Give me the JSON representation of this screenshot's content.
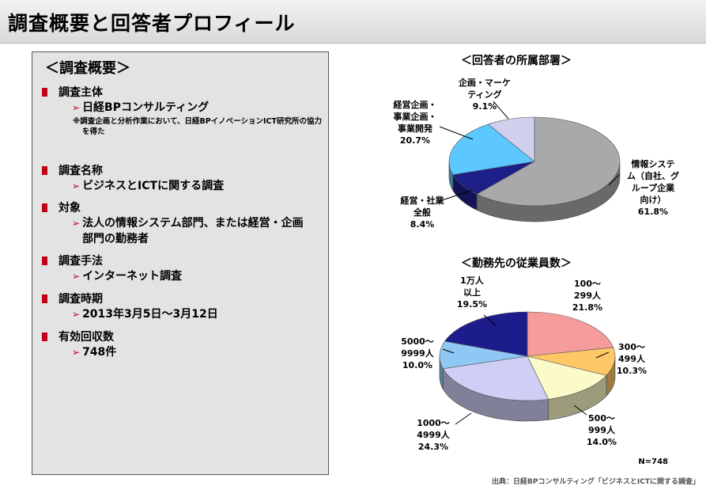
{
  "page": {
    "title": "調査概要と回答者プロフィール"
  },
  "summary": {
    "heading": "＜調査概要＞",
    "sections": [
      {
        "label": "調査主体",
        "items": [
          "日経BPコンサルティング"
        ],
        "note": "※調査企画と分析作業において、日経BPイノベーションICT研究所の協力を得た"
      },
      {
        "label": "調査名称",
        "items": [
          "ビジネスとICTに関する調査"
        ]
      },
      {
        "label": "対象",
        "items": [
          "法人の情報システム部門、または経営・企画部門の勤務者"
        ]
      },
      {
        "label": "調査手法",
        "items": [
          "インターネット調査"
        ]
      },
      {
        "label": "調査時期",
        "items": [
          "2013年3月5日～3月12日"
        ]
      },
      {
        "label": "有効回収数",
        "items": [
          "748件"
        ]
      }
    ]
  },
  "chart_data": [
    {
      "type": "pie",
      "title": "＜回答者の所属部署＞",
      "categories": [
        "情報システム(自社、グループ企業向け)",
        "経営・社業全般",
        "経営企画・事業企画・事業開発",
        "企画・マーケティング"
      ],
      "values": [
        61.8,
        8.4,
        20.7,
        9.1
      ],
      "unit": "%",
      "colors": [
        "#a9a9a9",
        "#1f1f8a",
        "#5cc8ff",
        "#cfd0ee"
      ],
      "labels": [
        {
          "name": "情報システ\nム（自社、グ\nループ企業\n向け）",
          "value": "61.8%"
        },
        {
          "name": "経営・社業\n全般",
          "value": "8.4%"
        },
        {
          "name": "経営企画・\n事業企画・\n事業開発",
          "value": "20.7%"
        },
        {
          "name": "企画・マーケ\nティング",
          "value": "9.1%"
        }
      ]
    },
    {
      "type": "pie",
      "title": "＜勤務先の従業員数＞",
      "categories": [
        "100～299人",
        "300～499人",
        "500～999人",
        "1000～4999人",
        "5000～9999人",
        "1万人以上"
      ],
      "values": [
        21.8,
        10.3,
        14.0,
        24.3,
        10.0,
        19.5
      ],
      "unit": "%",
      "colors": [
        "#f79c9c",
        "#ffc766",
        "#fbfbca",
        "#cfcff5",
        "#8fc8f5",
        "#1c1c8c"
      ],
      "labels": [
        {
          "name": "100～\n299人",
          "value": "21.8%"
        },
        {
          "name": "300～\n499人",
          "value": "10.3%"
        },
        {
          "name": "500～\n999人",
          "value": "14.0%"
        },
        {
          "name": "1000～\n4999人",
          "value": "24.3%"
        },
        {
          "name": "5000～\n9999人",
          "value": "10.0%"
        },
        {
          "name": "1万人\n以上",
          "value": "19.5%"
        }
      ],
      "sample_size": "N=748"
    }
  ],
  "footer": {
    "source": "出典：日経BPコンサルティング「ビジネスとICTに関する調査」"
  }
}
